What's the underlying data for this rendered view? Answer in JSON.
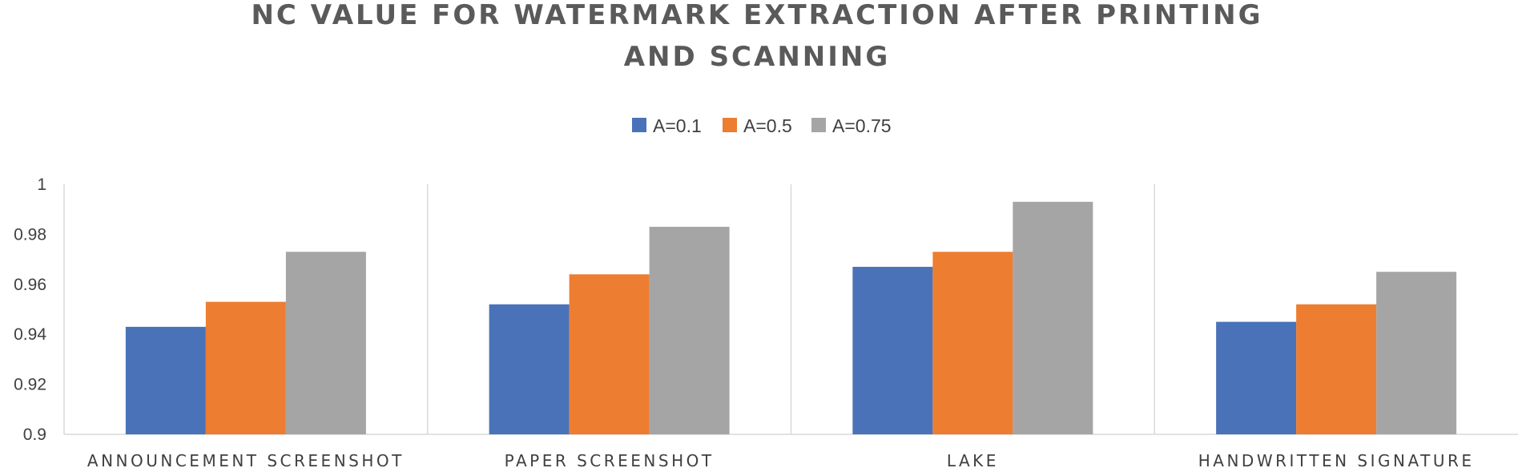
{
  "chart_data": {
    "type": "bar",
    "title_lines": [
      "NC VALUE FOR WATERMARK EXTRACTION AFTER PRINTING",
      "AND SCANNING"
    ],
    "categories": [
      "ANNOUNCEMENT SCREENSHOT",
      "PAPER SCREENSHOT",
      "LAKE",
      "HANDWRITTEN SIGNATURE"
    ],
    "series": [
      {
        "name": "A=0.1",
        "color": "#4a72b8",
        "values": [
          0.943,
          0.952,
          0.967,
          0.945
        ]
      },
      {
        "name": "A=0.5",
        "color": "#ed7d31",
        "values": [
          0.953,
          0.964,
          0.973,
          0.952
        ]
      },
      {
        "name": "A=0.75",
        "color": "#a5a5a5",
        "values": [
          0.973,
          0.983,
          0.993,
          0.965
        ]
      }
    ],
    "ylim": [
      0.9,
      1.0
    ],
    "yticks": [
      "0.9",
      "0.92",
      "0.94",
      "0.96",
      "0.98",
      "1"
    ],
    "xlabel": "",
    "ylabel": "",
    "legend_position": "top-center",
    "grid": false,
    "category_separators": true
  }
}
